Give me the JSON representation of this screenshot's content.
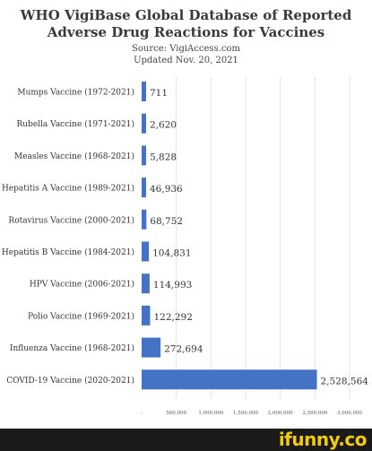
{
  "header": {
    "title_line1": "WHO VigiBase Global Database of Reported",
    "title_line2": "Adverse Drug Reactions for Vaccines",
    "source": "Source: VigiAccess.com",
    "updated": "Updated Nov. 20, 2021"
  },
  "chart_data": {
    "type": "bar",
    "orientation": "horizontal",
    "categories": [
      "Mumps Vaccine (1972-2021)",
      "Rubella Vaccine (1971-2021)",
      "Measles Vaccine (1968-2021)",
      "Hepatitis A Vaccine (1989-2021)",
      "Rotavirus Vaccine (2000-2021)",
      "Hepatitis B Vaccine (1984-2021)",
      "HPV Vaccine (2006-2021)",
      "Polio Vaccine (1969-2021)",
      "Influenza Vaccine (1968-2021)",
      "COVID-19 Vaccine (2020-2021)"
    ],
    "values": [
      711,
      2620,
      5828,
      46936,
      68752,
      104831,
      114993,
      122292,
      272694,
      2528564
    ],
    "value_labels": [
      "711",
      "2,620",
      "5,828",
      "46,936",
      "68,752",
      "104,831",
      "114,993",
      "122,292",
      "272,694",
      "2,528,564"
    ],
    "xticks": [
      0,
      500000,
      1000000,
      1500000,
      2000000,
      2500000,
      3000000
    ],
    "xtick_labels": [
      "-",
      "500,000",
      "1,000,000",
      "1,500,000",
      "2,000,000",
      "2,500,000",
      "3,000,000"
    ],
    "xlim": [
      0,
      3000000
    ],
    "grid": true,
    "bar_color": "#4472c4"
  },
  "watermark": "ifunny.co"
}
